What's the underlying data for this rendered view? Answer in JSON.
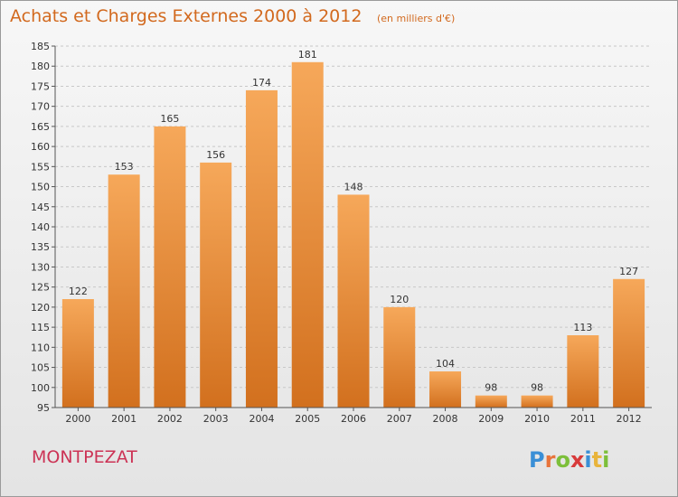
{
  "header": {
    "title": "Achats et Charges Externes 2000 à 2012",
    "subtitle": "(en milliers d'€)"
  },
  "footer": {
    "place": "MONTPEZAT",
    "logo_text": "Proxiti"
  },
  "colors": {
    "bar_top": "#f6a85a",
    "bar_bottom": "#d2701e",
    "title": "#d2691e",
    "place": "#cc3355"
  },
  "chart_data": {
    "type": "bar",
    "title": "Achats et Charges Externes 2000 à 2012",
    "subtitle": "(en milliers d'€)",
    "categories": [
      "2000",
      "2001",
      "2002",
      "2003",
      "2004",
      "2005",
      "2006",
      "2007",
      "2008",
      "2009",
      "2010",
      "2011",
      "2012"
    ],
    "values": [
      122,
      153,
      165,
      156,
      174,
      181,
      148,
      120,
      104,
      98,
      98,
      113,
      127
    ],
    "ylim": [
      95,
      185
    ],
    "yticks": [
      95,
      100,
      105,
      110,
      115,
      120,
      125,
      130,
      135,
      140,
      145,
      150,
      155,
      160,
      165,
      170,
      175,
      180,
      185
    ],
    "grid": true,
    "data_labels": true,
    "xlabel": "",
    "ylabel": ""
  }
}
